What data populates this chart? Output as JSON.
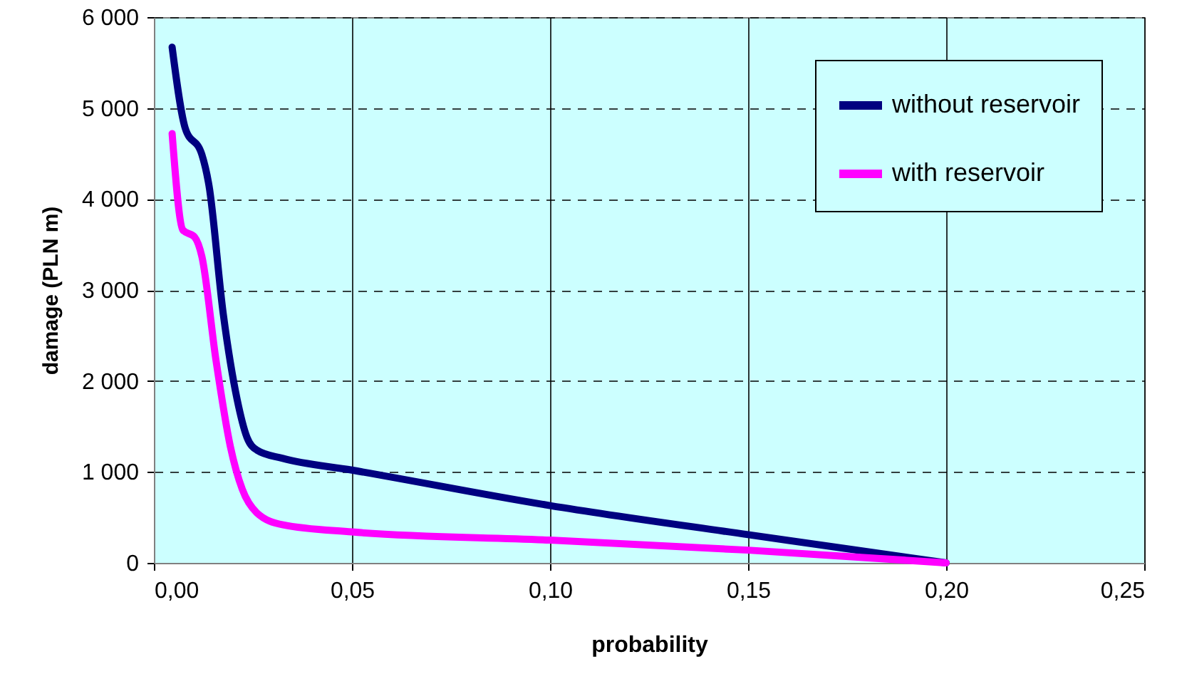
{
  "chart_data": {
    "type": "line",
    "xlabel": "probability",
    "ylabel": "damage (PLN m)",
    "xlim": [
      0,
      0.25
    ],
    "ylim": [
      0,
      6000
    ],
    "xticks": [
      {
        "value": 0,
        "label": "0,00"
      },
      {
        "value": 0.05,
        "label": "0,05"
      },
      {
        "value": 0.1,
        "label": "0,10"
      },
      {
        "value": 0.15,
        "label": "0,15"
      },
      {
        "value": 0.2,
        "label": "0,20"
      },
      {
        "value": 0.25,
        "label": "0,25"
      }
    ],
    "yticks": [
      0,
      {
        "value": 1000,
        "label": "1 000"
      },
      {
        "value": 2000,
        "label": "2 000"
      },
      {
        "value": 3000,
        "label": "3 000"
      },
      {
        "value": 4000,
        "label": "4 000"
      },
      {
        "value": 5000,
        "label": "5 000"
      },
      {
        "value": 6000,
        "label": "6 000"
      }
    ],
    "grid": true,
    "legend": "top right",
    "marker": "none",
    "line_style": "solid",
    "series": [
      {
        "name": "without reservoir",
        "color": "#000080",
        "x": [
          0.0046,
          0.0079,
          0.0121,
          0.0139,
          0.0175,
          0.021,
          0.0235,
          0.026,
          0.0324,
          0.05,
          0.1,
          0.15,
          0.2
        ],
        "values": [
          5670,
          4780,
          4490,
          4150,
          2740,
          1800,
          1380,
          1240,
          1150,
          1020,
          630,
          310,
          0
        ]
      },
      {
        "name": "with reservoir",
        "color": "#ff00ff",
        "x": [
          0.0046,
          0.0073,
          0.0103,
          0.0121,
          0.0157,
          0.0193,
          0.0223,
          0.026,
          0.0324,
          0.05,
          0.1,
          0.15,
          0.2
        ],
        "values": [
          4720,
          3660,
          3580,
          3370,
          2220,
          1280,
          810,
          550,
          420,
          340,
          250,
          140,
          0
        ]
      }
    ]
  }
}
